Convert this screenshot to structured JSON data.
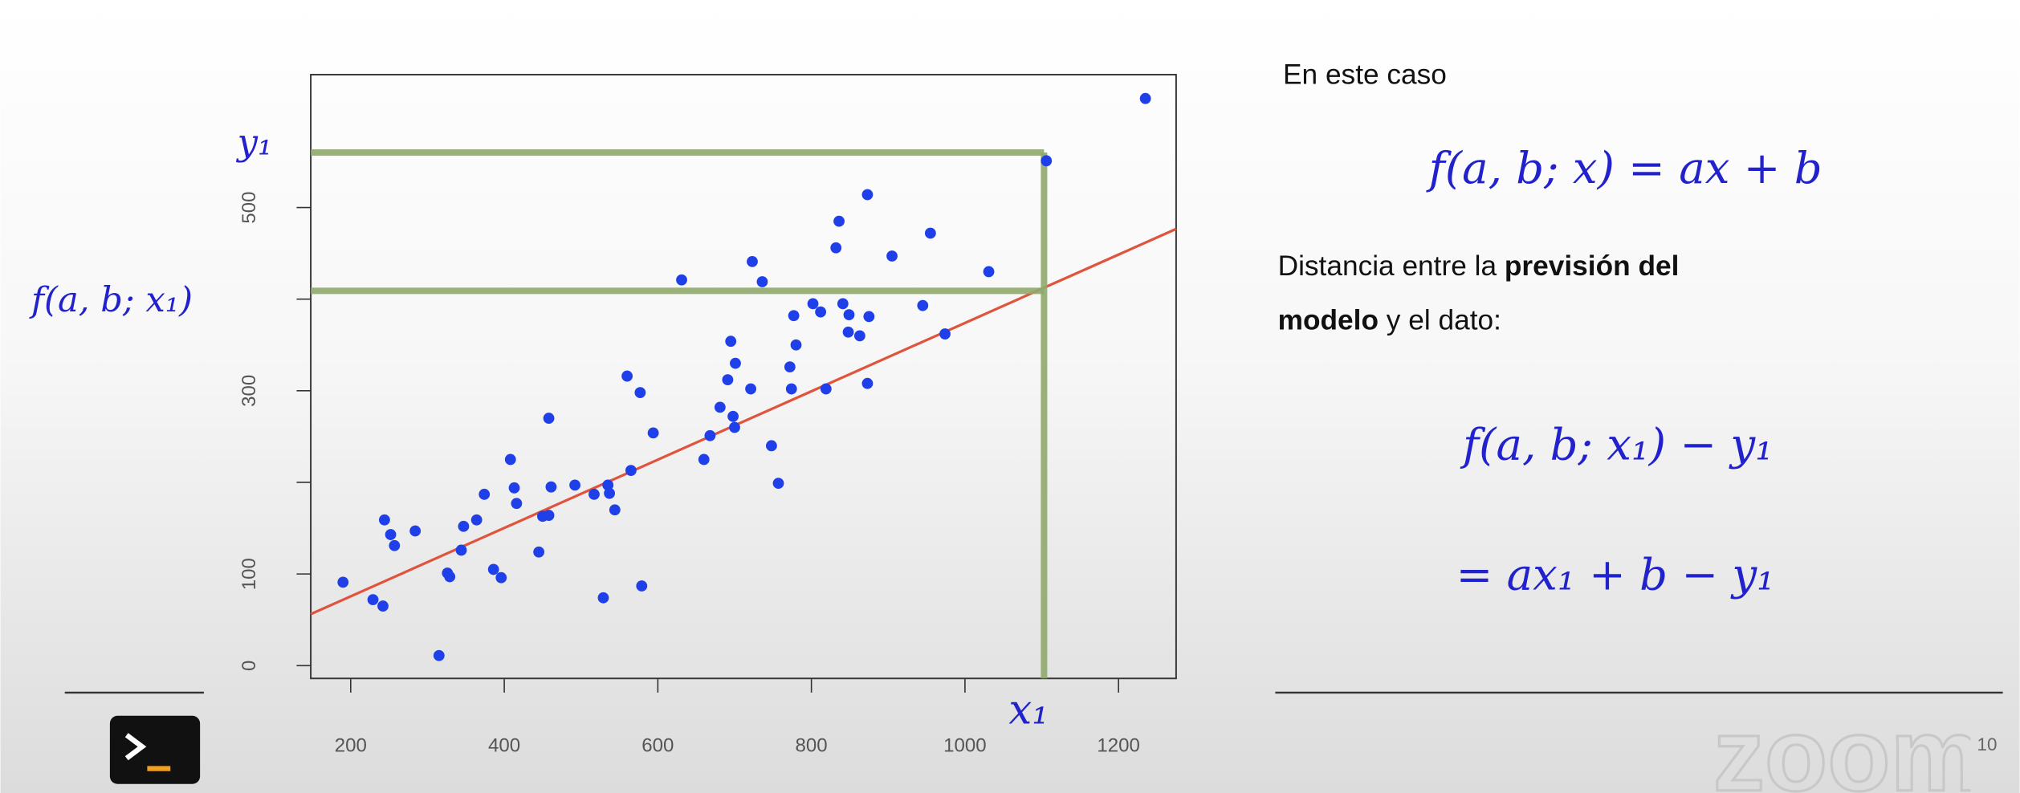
{
  "chart_data": {
    "type": "scatter",
    "x": [
      190,
      229,
      242,
      244,
      252,
      257,
      284,
      315,
      326,
      329,
      344,
      347,
      364,
      374,
      386,
      396,
      408,
      413,
      416,
      445,
      450,
      458,
      458,
      461,
      492,
      517,
      529,
      535,
      537,
      544,
      560,
      565,
      577,
      579,
      594,
      631,
      660,
      668,
      681,
      691,
      695,
      698,
      700,
      701,
      721,
      723,
      736,
      748,
      757,
      772,
      774,
      777,
      780,
      802,
      812,
      819,
      832,
      836,
      841,
      848,
      849,
      863,
      873,
      873,
      875,
      905,
      945,
      955,
      974,
      1031,
      1106,
      1235
    ],
    "values": [
      91,
      72,
      65,
      159,
      143,
      131,
      147,
      11,
      101,
      97,
      126,
      152,
      159,
      187,
      105,
      96,
      225,
      194,
      177,
      124,
      163,
      270,
      164,
      195,
      197,
      187,
      74,
      197,
      188,
      170,
      316,
      213,
      298,
      87,
      254,
      421,
      225,
      251,
      282,
      312,
      354,
      272,
      260,
      330,
      302,
      441,
      419,
      240,
      199,
      326,
      302,
      382,
      350,
      395,
      386,
      302,
      456,
      485,
      395,
      364,
      383,
      360,
      514,
      308,
      381,
      447,
      393,
      472,
      362,
      430,
      551,
      619
    ],
    "color": "#1f3fe8",
    "xlim": [
      148,
      1275
    ],
    "ylim": [
      -14,
      645
    ],
    "xticks": [
      200,
      400,
      600,
      800,
      1000,
      1200
    ],
    "yticks": [
      0,
      100,
      300,
      500
    ],
    "yticks_unlabeled": [
      200,
      400
    ],
    "fit": {
      "slope": 0.373,
      "intercept": 1,
      "color": "#e0533d"
    },
    "highlight": {
      "x": 1103,
      "y": 560,
      "fit_y": 409,
      "color": "#8fa86a",
      "x_label": "x₁",
      "y_label": "y₁",
      "fit_label": "f(a, b; x₁)"
    }
  },
  "text": {
    "heading": "En este caso",
    "formula_1": "f(a, b; x) = ax + b",
    "description": [
      [
        {
          "t": "Distancia entre la ",
          "bold": false
        },
        {
          "t": "previsión del",
          "bold": true
        }
      ],
      [
        {
          "t": "modelo",
          "bold": true
        },
        {
          "t": " y el dato:",
          "bold": false
        }
      ]
    ],
    "formula_2": "f(a, b; x₁) − y₁",
    "formula_3": "= ax₁ + b − y₁",
    "page_number": "10",
    "watermark": "zoom"
  }
}
